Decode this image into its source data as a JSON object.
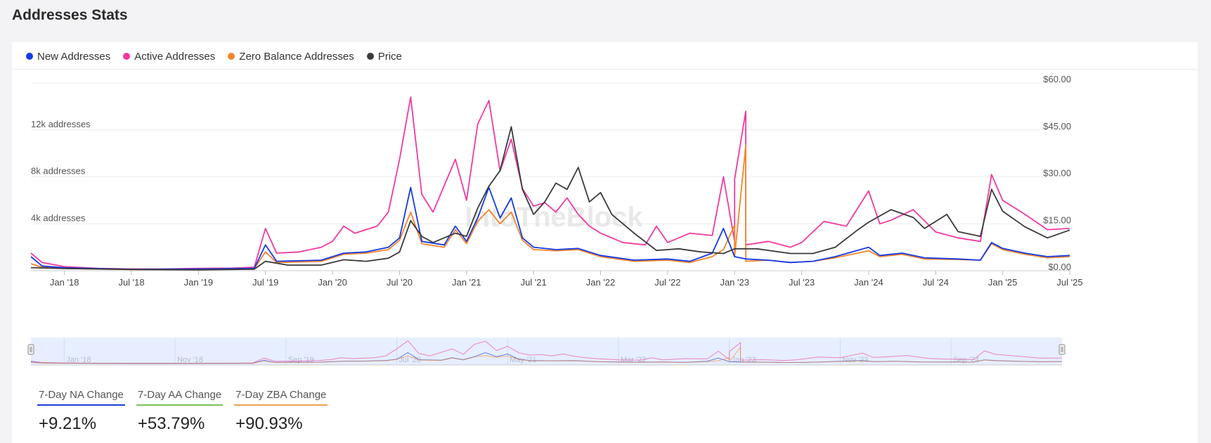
{
  "page": {
    "title": "Addresses Stats"
  },
  "legend": [
    {
      "label": "New Addresses",
      "color": "#1539e8"
    },
    {
      "label": "Active Addresses",
      "color": "#f2399f"
    },
    {
      "label": "Zero Balance Addresses",
      "color": "#f6842a"
    },
    {
      "label": "Price",
      "color": "#3a3a3a"
    }
  ],
  "stats": [
    {
      "label": "7-Day NA Change",
      "value": "+9.21%",
      "color": "#1a3fd6"
    },
    {
      "label": "7-Day AA Change",
      "value": "+53.79%",
      "color": "#7cbf5a"
    },
    {
      "label": "7-Day ZBA Change",
      "value": "+90.93%",
      "color": "#f0a04a"
    }
  ],
  "chart_data": {
    "type": "line",
    "x_range": [
      "2017-10",
      "2025-07"
    ],
    "x_ticks": [
      "Jan '18",
      "Jul '18",
      "Jan '19",
      "Jul '19",
      "Jan '20",
      "Jul '20",
      "Jan '21",
      "Jul '21",
      "Jan '22",
      "Jul '22",
      "Jan '23",
      "Jul '23",
      "Jan '24",
      "Jul '24",
      "Jan '25",
      "Jul '25"
    ],
    "y_left": {
      "ticks": [
        "4k addresses",
        "8k addresses",
        "12k addresses"
      ],
      "range": [
        0,
        16000
      ]
    },
    "y_right": {
      "ticks": [
        "$0.00",
        "$15.00",
        "$30.00",
        "$45.00",
        "$60.00"
      ],
      "range": [
        0,
        60
      ]
    },
    "navigator_labels": [
      "Jan '18",
      "Nov '18",
      "Sep '19",
      "Jul '20",
      "May '21",
      "Mar '22",
      "Jan '23",
      "Nov '23",
      "Sep '24"
    ],
    "watermark": "IntoTheBlock",
    "series": [
      {
        "name": "Active Addresses",
        "axis": "left",
        "color": "#f2399f",
        "points": [
          [
            "2017-10",
            1500
          ],
          [
            "2017-11",
            700
          ],
          [
            "2018-01",
            350
          ],
          [
            "2018-04",
            200
          ],
          [
            "2018-07",
            150
          ],
          [
            "2018-10",
            150
          ],
          [
            "2019-01",
            200
          ],
          [
            "2019-04",
            220
          ],
          [
            "2019-06",
            300
          ],
          [
            "2019-07",
            3600
          ],
          [
            "2019-08",
            1500
          ],
          [
            "2019-10",
            1600
          ],
          [
            "2019-12",
            2000
          ],
          [
            "2020-01",
            2500
          ],
          [
            "2020-02",
            3800
          ],
          [
            "2020-03",
            3200
          ],
          [
            "2020-05",
            3800
          ],
          [
            "2020-06",
            5000
          ],
          [
            "2020-07",
            9500
          ],
          [
            "2020-08",
            14800
          ],
          [
            "2020-09",
            6500
          ],
          [
            "2020-10",
            5000
          ],
          [
            "2020-12",
            9500
          ],
          [
            "2021-01",
            6000
          ],
          [
            "2021-02",
            12500
          ],
          [
            "2021-03",
            14500
          ],
          [
            "2021-04",
            8500
          ],
          [
            "2021-05",
            11200
          ],
          [
            "2021-06",
            7000
          ],
          [
            "2021-07",
            5500
          ],
          [
            "2021-08",
            5800
          ],
          [
            "2021-09",
            5000
          ],
          [
            "2021-10",
            6200
          ],
          [
            "2021-11",
            4800
          ],
          [
            "2021-12",
            3800
          ],
          [
            "2022-01",
            3200
          ],
          [
            "2022-03",
            2400
          ],
          [
            "2022-05",
            2200
          ],
          [
            "2022-06",
            3800
          ],
          [
            "2022-07",
            2400
          ],
          [
            "2022-09",
            3200
          ],
          [
            "2022-11",
            3000
          ],
          [
            "2022-12",
            8000
          ],
          [
            "2023-01",
            2500
          ],
          [
            "2023-01",
            7800
          ],
          [
            "2023-02",
            13600
          ],
          [
            "2023-02",
            2200
          ],
          [
            "2023-04",
            2500
          ],
          [
            "2023-06",
            2000
          ],
          [
            "2023-07",
            2400
          ],
          [
            "2023-09",
            4200
          ],
          [
            "2023-11",
            3800
          ],
          [
            "2024-01",
            6800
          ],
          [
            "2024-02",
            4000
          ],
          [
            "2024-03",
            4300
          ],
          [
            "2024-05",
            5200
          ],
          [
            "2024-07",
            3300
          ],
          [
            "2024-09",
            2800
          ],
          [
            "2024-11",
            2500
          ],
          [
            "2024-12",
            8200
          ],
          [
            "2025-01",
            6000
          ],
          [
            "2025-03",
            4800
          ],
          [
            "2025-05",
            3500
          ],
          [
            "2025-07",
            3600
          ]
        ]
      },
      {
        "name": "New Addresses",
        "axis": "left",
        "color": "#1539e8",
        "points": [
          [
            "2017-10",
            1200
          ],
          [
            "2017-11",
            400
          ],
          [
            "2018-01",
            250
          ],
          [
            "2018-07",
            120
          ],
          [
            "2019-01",
            150
          ],
          [
            "2019-06",
            200
          ],
          [
            "2019-07",
            2200
          ],
          [
            "2019-08",
            800
          ],
          [
            "2019-12",
            900
          ],
          [
            "2020-02",
            1500
          ],
          [
            "2020-04",
            1600
          ],
          [
            "2020-06",
            2000
          ],
          [
            "2020-07",
            2800
          ],
          [
            "2020-08",
            7100
          ],
          [
            "2020-09",
            2500
          ],
          [
            "2020-11",
            2200
          ],
          [
            "2020-12",
            3800
          ],
          [
            "2021-01",
            2500
          ],
          [
            "2021-02",
            4500
          ],
          [
            "2021-03",
            7100
          ],
          [
            "2021-04",
            4500
          ],
          [
            "2021-05",
            6200
          ],
          [
            "2021-06",
            2800
          ],
          [
            "2021-07",
            2000
          ],
          [
            "2021-09",
            1800
          ],
          [
            "2021-11",
            1900
          ],
          [
            "2022-01",
            1300
          ],
          [
            "2022-04",
            900
          ],
          [
            "2022-07",
            1000
          ],
          [
            "2022-09",
            800
          ],
          [
            "2022-11",
            1500
          ],
          [
            "2022-12",
            3600
          ],
          [
            "2023-01",
            1200
          ],
          [
            "2023-02",
            1000
          ],
          [
            "2023-04",
            900
          ],
          [
            "2023-06",
            700
          ],
          [
            "2023-08",
            800
          ],
          [
            "2023-10",
            1200
          ],
          [
            "2024-01",
            2000
          ],
          [
            "2024-02",
            1300
          ],
          [
            "2024-04",
            1500
          ],
          [
            "2024-06",
            1100
          ],
          [
            "2024-09",
            1000
          ],
          [
            "2024-11",
            900
          ],
          [
            "2024-12",
            2400
          ],
          [
            "2025-01",
            1900
          ],
          [
            "2025-03",
            1500
          ],
          [
            "2025-05",
            1200
          ],
          [
            "2025-07",
            1300
          ]
        ]
      },
      {
        "name": "Zero Balance Addresses",
        "axis": "left",
        "color": "#f6842a",
        "points": [
          [
            "2017-10",
            600
          ],
          [
            "2017-11",
            300
          ],
          [
            "2018-01",
            200
          ],
          [
            "2018-07",
            100
          ],
          [
            "2019-01",
            120
          ],
          [
            "2019-06",
            180
          ],
          [
            "2019-07",
            1600
          ],
          [
            "2019-08",
            700
          ],
          [
            "2019-12",
            800
          ],
          [
            "2020-02",
            1400
          ],
          [
            "2020-04",
            1500
          ],
          [
            "2020-06",
            1800
          ],
          [
            "2020-07",
            2600
          ],
          [
            "2020-08",
            5000
          ],
          [
            "2020-09",
            2300
          ],
          [
            "2020-11",
            2000
          ],
          [
            "2020-12",
            3500
          ],
          [
            "2021-01",
            2300
          ],
          [
            "2021-02",
            4200
          ],
          [
            "2021-03",
            5200
          ],
          [
            "2021-04",
            4000
          ],
          [
            "2021-05",
            5000
          ],
          [
            "2021-06",
            2600
          ],
          [
            "2021-07",
            1800
          ],
          [
            "2021-09",
            1700
          ],
          [
            "2021-11",
            1800
          ],
          [
            "2022-01",
            1200
          ],
          [
            "2022-04",
            800
          ],
          [
            "2022-07",
            900
          ],
          [
            "2022-09",
            700
          ],
          [
            "2022-11",
            1200
          ],
          [
            "2022-12",
            1800
          ],
          [
            "2023-01",
            3900
          ],
          [
            "2023-01",
            1200
          ],
          [
            "2023-02",
            10700
          ],
          [
            "2023-02",
            800
          ],
          [
            "2023-04",
            900
          ],
          [
            "2023-06",
            700
          ],
          [
            "2023-08",
            800
          ],
          [
            "2023-10",
            1100
          ],
          [
            "2024-01",
            1700
          ],
          [
            "2024-02",
            1200
          ],
          [
            "2024-04",
            1400
          ],
          [
            "2024-06",
            1000
          ],
          [
            "2024-09",
            950
          ],
          [
            "2024-11",
            900
          ],
          [
            "2024-12",
            2300
          ],
          [
            "2025-01",
            1800
          ],
          [
            "2025-03",
            1400
          ],
          [
            "2025-05",
            1100
          ],
          [
            "2025-07",
            1200
          ]
        ]
      },
      {
        "name": "Price",
        "axis": "right",
        "color": "#3a3a3a",
        "points": [
          [
            "2017-10",
            1.0
          ],
          [
            "2018-01",
            0.7
          ],
          [
            "2018-07",
            0.4
          ],
          [
            "2019-01",
            0.3
          ],
          [
            "2019-06",
            0.5
          ],
          [
            "2019-07",
            3.0
          ],
          [
            "2019-09",
            1.8
          ],
          [
            "2019-12",
            1.8
          ],
          [
            "2020-02",
            3.5
          ],
          [
            "2020-04",
            3.0
          ],
          [
            "2020-06",
            4.0
          ],
          [
            "2020-07",
            6.0
          ],
          [
            "2020-08",
            16.0
          ],
          [
            "2020-09",
            11.0
          ],
          [
            "2020-10",
            9.0
          ],
          [
            "2020-12",
            12.0
          ],
          [
            "2021-01",
            11.0
          ],
          [
            "2021-02",
            20.0
          ],
          [
            "2021-03",
            27.0
          ],
          [
            "2021-04",
            32.0
          ],
          [
            "2021-05",
            46.0
          ],
          [
            "2021-06",
            26.0
          ],
          [
            "2021-07",
            18.0
          ],
          [
            "2021-08",
            22.0
          ],
          [
            "2021-09",
            28.0
          ],
          [
            "2021-10",
            26.0
          ],
          [
            "2021-11",
            33.0
          ],
          [
            "2021-12",
            22.0
          ],
          [
            "2022-01",
            25.0
          ],
          [
            "2022-02",
            18.0
          ],
          [
            "2022-04",
            12.0
          ],
          [
            "2022-06",
            6.5
          ],
          [
            "2022-08",
            7.0
          ],
          [
            "2022-10",
            6.0
          ],
          [
            "2022-12",
            5.5
          ],
          [
            "2023-01",
            7.0
          ],
          [
            "2023-03",
            7.0
          ],
          [
            "2023-06",
            5.5
          ],
          [
            "2023-08",
            5.5
          ],
          [
            "2023-10",
            7.5
          ],
          [
            "2023-12",
            13.0
          ],
          [
            "2024-01",
            15.5
          ],
          [
            "2024-03",
            19.5
          ],
          [
            "2024-05",
            17.0
          ],
          [
            "2024-06",
            13.5
          ],
          [
            "2024-08",
            18.0
          ],
          [
            "2024-09",
            12.5
          ],
          [
            "2024-11",
            11.0
          ],
          [
            "2024-12",
            26.0
          ],
          [
            "2025-01",
            19.0
          ],
          [
            "2025-03",
            14.0
          ],
          [
            "2025-05",
            10.5
          ],
          [
            "2025-07",
            13.0
          ]
        ]
      }
    ]
  }
}
